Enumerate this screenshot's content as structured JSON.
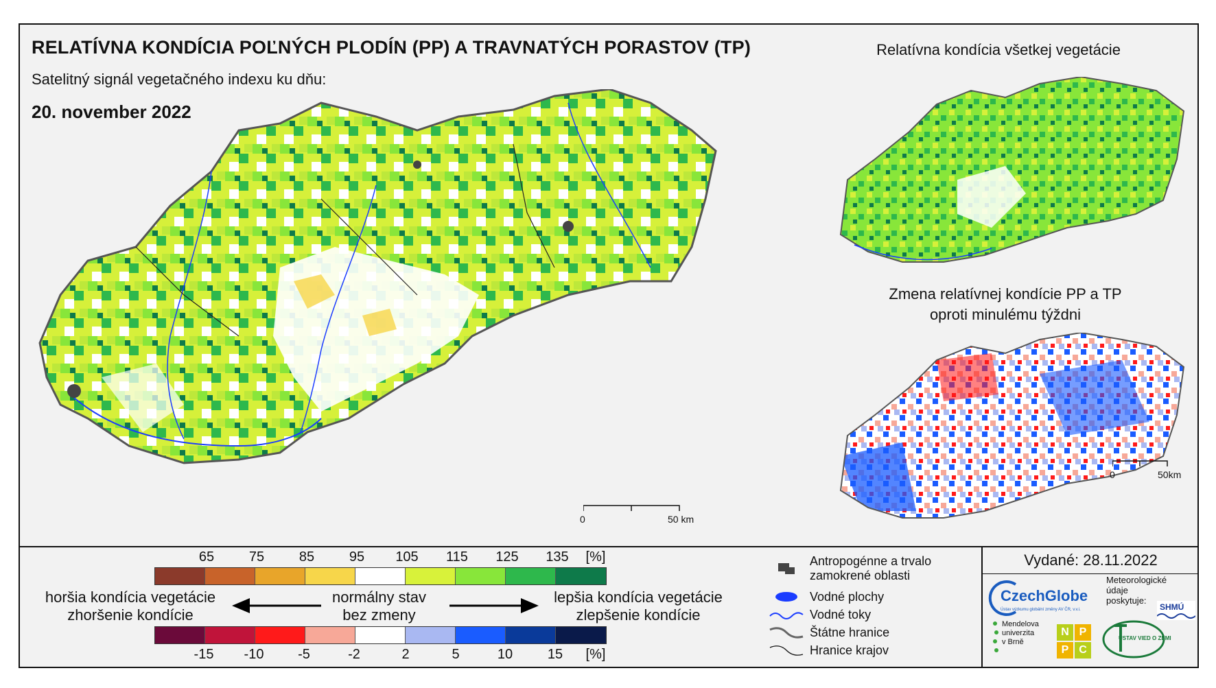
{
  "header": {
    "title": "RELATÍVNA KONDÍCIA POĽNÝCH PLODÍN (PP) A TRAVNATÝCH PORASTOV (TP)",
    "subtitle": "Satelitný signál vegetačného indexu ku dňu:",
    "date": "20. november 2022"
  },
  "insets": {
    "all_vegetation_title": "Relatívna kondícia všetkej vegetácie",
    "change_title_line1": "Zmena relatívnej kondície PP a TP",
    "change_title_line2": "oproti minulému týždni"
  },
  "scalebar_main": {
    "start": "0",
    "end": "50 km"
  },
  "scalebar_small": {
    "start": "0",
    "end": "50km"
  },
  "legend_condition": {
    "labels": [
      "65",
      "75",
      "85",
      "95",
      "105",
      "115",
      "125",
      "135"
    ],
    "unit": "[%]",
    "colors": [
      "#8b3a2b",
      "#c8632a",
      "#e8a52a",
      "#f7d64a",
      "#ffffff",
      "#d8f23a",
      "#88e63a",
      "#2eb84c",
      "#0e7a4a"
    ]
  },
  "legend_change": {
    "labels": [
      "-15",
      "-10",
      "-5",
      "-2",
      "2",
      "5",
      "10",
      "15"
    ],
    "unit": "[%]",
    "colors": [
      "#6b0a3a",
      "#c0143a",
      "#ff1a1a",
      "#f7a898",
      "#ffffff",
      "#a9b8f2",
      "#1a5cff",
      "#0a3a9a",
      "#0a1a4a"
    ]
  },
  "directions": {
    "worse_line1": "horšia kondícia vegetácie",
    "worse_line2": "zhoršenie kondície",
    "normal_line1": "normálny stav",
    "normal_line2": "bez zmeny",
    "better_line1": "lepšia kondícia vegetácie",
    "better_line2": "zlepšenie kondície"
  },
  "map_symbols": [
    {
      "label_line1": "Antropogénne a trvalo",
      "label_line2": "zamokrené oblasti",
      "icon": "urban-area-icon"
    },
    {
      "label_line1": "Vodné plochy",
      "label_line2": "",
      "icon": "water-body-icon"
    },
    {
      "label_line1": "Vodné toky",
      "label_line2": "",
      "icon": "river-icon"
    },
    {
      "label_line1": "Štátne hranice",
      "label_line2": "",
      "icon": "state-border-icon"
    },
    {
      "label_line1": "Hranice krajov",
      "label_line2": "",
      "icon": "region-border-icon"
    }
  ],
  "issued": "Vydané: 28.11.2022",
  "credits": {
    "czechglobe": "CzechGlobe",
    "czechglobe_sub": "Ústav výzkumu globální změny AV ČR, v.v.i.",
    "meteo_line1": "Meteorologické",
    "meteo_line2": "údaje",
    "meteo_line3": "poskytuje:",
    "shmu": "SHMÚ",
    "mendel_line1": "Mendelova",
    "mendel_line2": "univerzita",
    "mendel_line3": "v Brně",
    "nppc_letters": [
      "N",
      "P",
      "P",
      "C"
    ],
    "uvz": "ÚSTAV VIED O ZEMI"
  }
}
